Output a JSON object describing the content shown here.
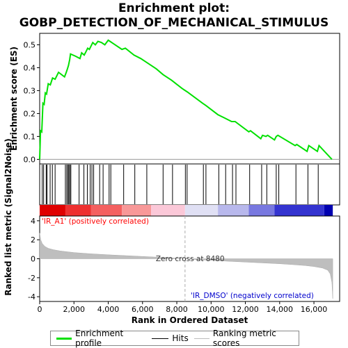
{
  "title_line1": "Enrichment plot:",
  "title_line2": "GOBP_DETECTION_OF_MECHANICAL_STIMULUS",
  "colors": {
    "enrichment_line": "#00e000",
    "hits": "#000000",
    "ranking_fill": "#bebebe",
    "zero_line": "#aaaaaa",
    "pos_label": "#ff0000",
    "neg_label": "#0000cc"
  },
  "legend": {
    "enrichment_profile": "Enrichment profile",
    "hits": "Hits",
    "ranking_metric_scores": "Ranking metric scores"
  },
  "chart_data": [
    {
      "type": "line",
      "ylabel": "Enrichment score (ES)",
      "xlim": [
        0,
        17500
      ],
      "ylim": [
        -0.02,
        0.55
      ],
      "yticks": [
        "0.0",
        "0.1",
        "0.2",
        "0.3",
        "0.4",
        "0.5"
      ],
      "ytick_values": [
        0.0,
        0.1,
        0.2,
        0.3,
        0.4,
        0.5
      ],
      "grid": false,
      "series": [
        {
          "name": "Enrichment profile",
          "x": [
            0,
            50,
            120,
            190,
            260,
            330,
            400,
            500,
            620,
            750,
            900,
            1100,
            1450,
            1550,
            1620,
            1680,
            1750,
            1800,
            2100,
            2350,
            2450,
            2600,
            2700,
            2800,
            2900,
            3000,
            3100,
            3250,
            3400,
            3600,
            3800,
            4000,
            4100,
            4300,
            4800,
            5000,
            5500,
            5900,
            6200,
            6800,
            7200,
            7700,
            8300,
            8500,
            8600,
            9500,
            9700,
            10400,
            10800,
            11200,
            11400,
            12200,
            12300,
            12900,
            13000,
            13200,
            13300,
            13700,
            13800,
            13900,
            14900,
            15000,
            15600,
            15700,
            16200,
            16300,
            17050
          ],
          "y": [
            0.0,
            0.125,
            0.12,
            0.245,
            0.24,
            0.29,
            0.285,
            0.33,
            0.325,
            0.355,
            0.35,
            0.38,
            0.36,
            0.38,
            0.395,
            0.41,
            0.435,
            0.46,
            0.45,
            0.44,
            0.465,
            0.455,
            0.47,
            0.485,
            0.48,
            0.495,
            0.51,
            0.5,
            0.515,
            0.51,
            0.5,
            0.52,
            0.515,
            0.505,
            0.48,
            0.485,
            0.455,
            0.44,
            0.425,
            0.395,
            0.37,
            0.345,
            0.31,
            0.3,
            0.295,
            0.245,
            0.235,
            0.195,
            0.18,
            0.165,
            0.165,
            0.12,
            0.125,
            0.09,
            0.105,
            0.1,
            0.105,
            0.085,
            0.1,
            0.105,
            0.06,
            0.065,
            0.035,
            0.06,
            0.035,
            0.06,
            0.0
          ]
        }
      ]
    },
    {
      "type": "hits",
      "xlim": [
        0,
        17500
      ],
      "hits": [
        150,
        230,
        380,
        430,
        610,
        740,
        900,
        1500,
        1580,
        1650,
        1700,
        1760,
        1820,
        2300,
        2580,
        2780,
        2950,
        3050,
        3150,
        3500,
        3700,
        4050,
        4150,
        4900,
        5550,
        6250,
        7200,
        7750,
        8500,
        8600,
        9550,
        9700,
        10450,
        10850,
        11250,
        11450,
        12250,
        12950,
        13250,
        13800,
        13950,
        14950,
        15650,
        16250
      ]
    },
    {
      "type": "area",
      "xlabel": "Rank in Ordered Dataset",
      "ylabel": "Ranked list metric (Signal2Noise)",
      "xlim": [
        0,
        17500
      ],
      "ylim": [
        -4.5,
        4.5
      ],
      "xticks": [
        "0",
        "2,000",
        "4,000",
        "6,000",
        "8,000",
        "10,000",
        "12,000",
        "14,000",
        "16,000"
      ],
      "xtick_values": [
        0,
        2000,
        4000,
        6000,
        8000,
        10000,
        12000,
        14000,
        16000
      ],
      "yticks": [
        "4",
        "2",
        "0",
        "-2",
        "-4"
      ],
      "ytick_values": [
        4,
        2,
        0,
        -2,
        -4
      ],
      "annotations": {
        "positive": "'IR_A1' (positively correlated)",
        "negative": "'IR_DMSO' (negatively correlated)",
        "zero_cross": "Zero cross at 8480"
      },
      "zero_cross": 8480,
      "x": [
        0,
        60,
        150,
        300,
        500,
        800,
        1200,
        2000,
        3000,
        4000,
        5000,
        6000,
        7000,
        8000,
        8480,
        9000,
        10000,
        11000,
        12000,
        13000,
        14000,
        14800,
        15500,
        16000,
        16500,
        16800,
        16950,
        17050,
        17100
      ],
      "values": [
        2.7,
        2.0,
        1.6,
        1.3,
        1.1,
        0.95,
        0.82,
        0.65,
        0.52,
        0.42,
        0.33,
        0.24,
        0.15,
        0.06,
        0.0,
        -0.07,
        -0.17,
        -0.26,
        -0.35,
        -0.44,
        -0.53,
        -0.62,
        -0.72,
        -0.82,
        -0.98,
        -1.2,
        -1.6,
        -2.5,
        -4.2
      ]
    }
  ]
}
